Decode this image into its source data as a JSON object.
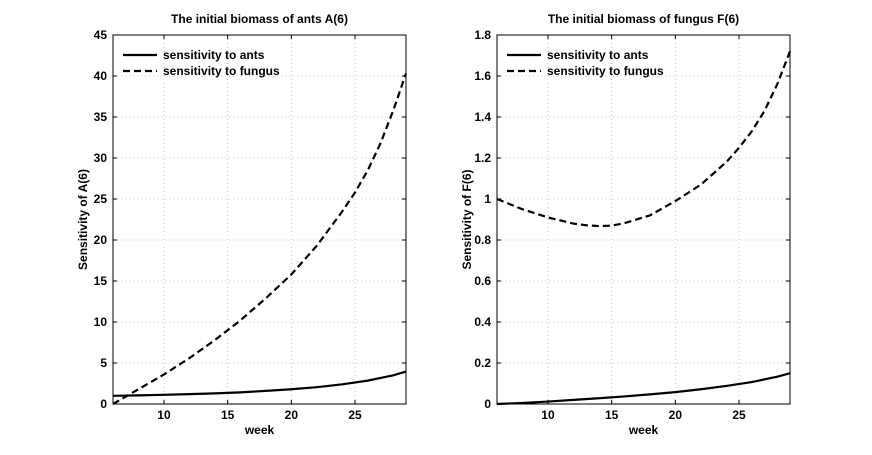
{
  "chart_data": [
    {
      "type": "line",
      "title": "The initial biomass of ants A(6)",
      "xlabel": "week",
      "ylabel": "Sensitivity of A(6)",
      "xlim": [
        6,
        29
      ],
      "ylim": [
        0,
        45
      ],
      "xticks": [
        10,
        15,
        20,
        25
      ],
      "yticks": [
        0,
        5,
        10,
        15,
        20,
        25,
        30,
        35,
        40,
        45
      ],
      "grid": true,
      "legend_position": "top-left",
      "series": [
        {
          "name": "sensitivity to ants",
          "style": "solid",
          "x": [
            6,
            8,
            10,
            12,
            14,
            16,
            18,
            20,
            22,
            24,
            26,
            28,
            29
          ],
          "y": [
            1.0,
            1.05,
            1.12,
            1.2,
            1.3,
            1.42,
            1.6,
            1.8,
            2.05,
            2.4,
            2.85,
            3.5,
            3.95
          ]
        },
        {
          "name": "sensitivity to fungus",
          "style": "dashed",
          "x": [
            6,
            7,
            8,
            10,
            12,
            14,
            15,
            16,
            18,
            20,
            22,
            24,
            25,
            26,
            27,
            28,
            29
          ],
          "y": [
            0,
            0.9,
            1.8,
            3.6,
            5.6,
            7.8,
            9.0,
            10.2,
            12.9,
            15.8,
            19.3,
            23.5,
            25.8,
            28.5,
            31.8,
            35.8,
            40.3
          ]
        }
      ]
    },
    {
      "type": "line",
      "title": "The initial biomass of fungus F(6)",
      "xlabel": "week",
      "ylabel": "Sensitivity of F(6)",
      "xlim": [
        6,
        29
      ],
      "ylim": [
        0,
        1.8
      ],
      "xticks": [
        10,
        15,
        20,
        25
      ],
      "yticks": [
        0,
        0.2,
        0.4,
        0.6,
        0.8,
        1,
        1.2,
        1.4,
        1.6,
        1.8
      ],
      "grid": true,
      "legend_position": "top-left",
      "series": [
        {
          "name": "sensitivity to ants",
          "style": "solid",
          "x": [
            6,
            8,
            10,
            12,
            14,
            16,
            18,
            20,
            22,
            24,
            26,
            28,
            29
          ],
          "y": [
            0,
            0.005,
            0.012,
            0.02,
            0.028,
            0.037,
            0.047,
            0.058,
            0.072,
            0.088,
            0.107,
            0.133,
            0.15
          ]
        },
        {
          "name": "sensitivity to fungus",
          "style": "dashed",
          "x": [
            6,
            8,
            10,
            12,
            13,
            14,
            15,
            16,
            18,
            20,
            22,
            24,
            25,
            26,
            27,
            28,
            29
          ],
          "y": [
            1.0,
            0.95,
            0.91,
            0.88,
            0.872,
            0.868,
            0.87,
            0.882,
            0.92,
            0.99,
            1.07,
            1.18,
            1.25,
            1.33,
            1.43,
            1.56,
            1.72
          ]
        }
      ]
    }
  ]
}
